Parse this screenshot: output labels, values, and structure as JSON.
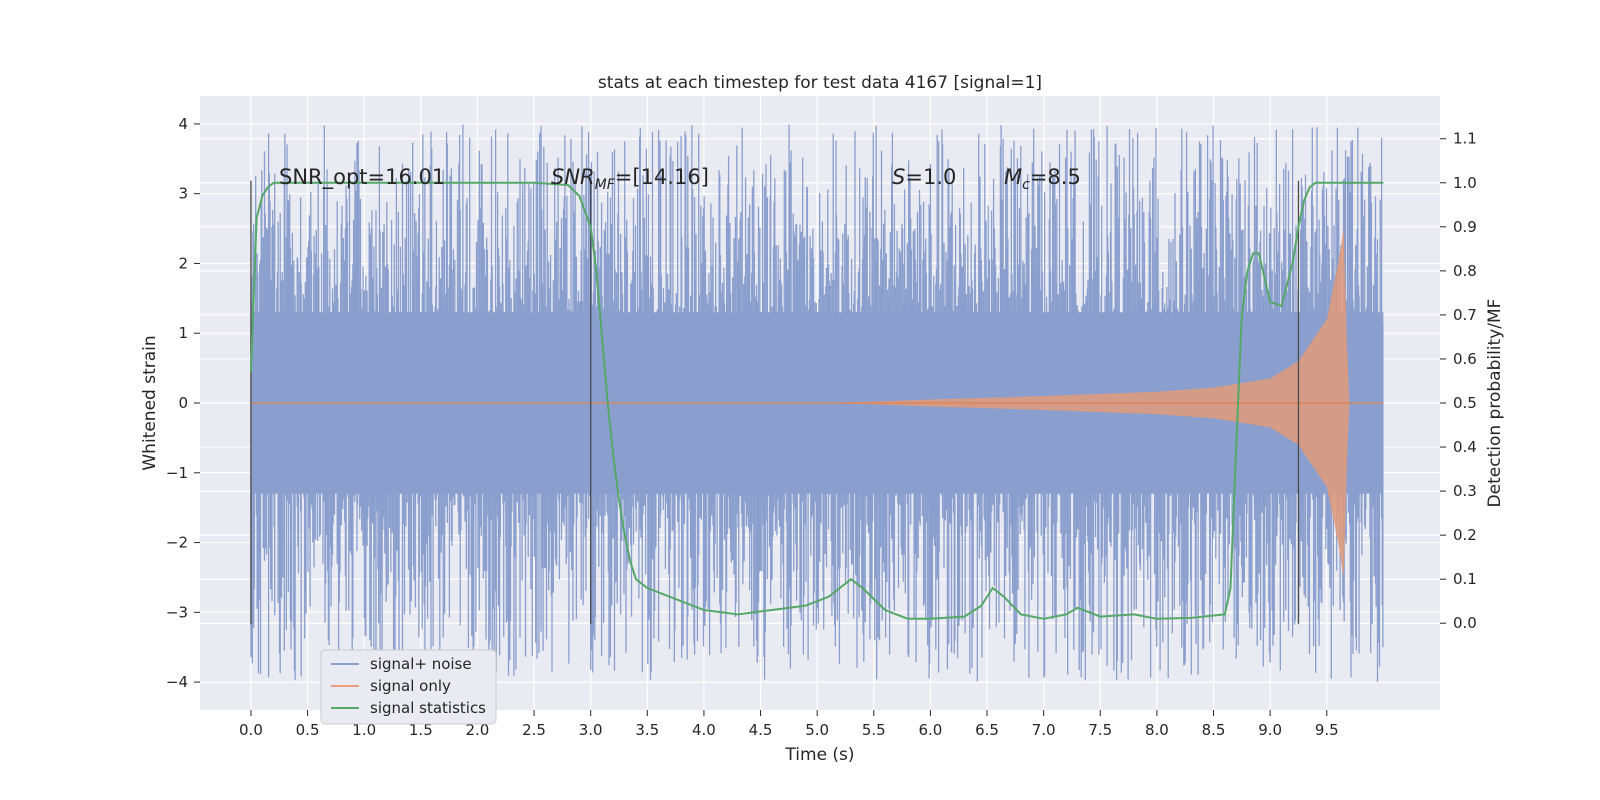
{
  "chart_data": {
    "type": "line",
    "title": "stats at each timestep for test data 4167 [signal=1]",
    "xlabel": "Time (s)",
    "ylabel_left": "Whitened strain",
    "ylabel_right": "Detection probability/MF",
    "xlim": [
      -0.45,
      10.5
    ],
    "xticks": [
      0.0,
      0.5,
      1.0,
      1.5,
      2.0,
      2.5,
      3.0,
      3.5,
      4.0,
      4.5,
      5.0,
      5.5,
      6.0,
      6.5,
      7.0,
      7.5,
      8.0,
      8.5,
      9.0,
      9.5
    ],
    "xtick_labels": [
      "0.0",
      "0.5",
      "1.0",
      "1.5",
      "2.0",
      "2.5",
      "3.0",
      "3.5",
      "4.0",
      "4.5",
      "5.0",
      "5.5",
      "6.0",
      "6.5",
      "7.0",
      "7.5",
      "8.0",
      "8.5",
      "9.0",
      "9.5"
    ],
    "ylim_left": [
      -4.4,
      4.4
    ],
    "yticks_left": [
      -4,
      -3,
      -2,
      -1,
      0,
      1,
      2,
      3,
      4
    ],
    "ytick_labels_left": [
      "−4",
      "−3",
      "−2",
      "−1",
      "0",
      "1",
      "2",
      "3",
      "4"
    ],
    "ylim_right": [
      -0.197,
      1.197
    ],
    "yticks_right": [
      0.0,
      0.1,
      0.2,
      0.3,
      0.4,
      0.5,
      0.6,
      0.7,
      0.8,
      0.9,
      1.0,
      1.1
    ],
    "ytick_labels_right": [
      "0.0",
      "0.1",
      "0.2",
      "0.3",
      "0.4",
      "0.5",
      "0.6",
      "0.7",
      "0.8",
      "0.9",
      "1.0",
      "1.1"
    ],
    "grid": true,
    "legend_position": "lower-left",
    "legend": [
      "signal+ noise",
      "signal only",
      "signal statistics"
    ],
    "colors": {
      "noise": "#8a9fcd",
      "signal": "#dd8452",
      "signal_fill": "#e09a7a",
      "stats": "#55a868",
      "vline": "#4a4a4a",
      "plot_bg": "#eaeaf2",
      "grid": "#ffffff"
    },
    "annotations": {
      "snr_opt": "SNR_opt=16.01",
      "snr_mf_label": "SNR",
      "snr_mf_sub": "MF",
      "snr_mf_value": "=[14.16]",
      "s_label": "S",
      "s_value": "=1.0",
      "mc_label": "M",
      "mc_sub": "c",
      "mc_value": "=8.5"
    },
    "vertical_lines_x": [
      0.0,
      3.0,
      9.25
    ],
    "signal_plus_noise": {
      "t_start": 0.0,
      "t_end": 10.0,
      "core_band": [
        -1.3,
        1.3
      ],
      "spike_range": [
        -4.0,
        4.0
      ],
      "description_note": ""
    },
    "signal_only": {
      "t_start": 0.0,
      "t_end": 10.0,
      "amplitude_envelope": [
        [
          0.0,
          0.0
        ],
        [
          5.0,
          0.0
        ],
        [
          5.5,
          0.02
        ],
        [
          6.0,
          0.05
        ],
        [
          7.0,
          0.1
        ],
        [
          8.0,
          0.16
        ],
        [
          8.5,
          0.22
        ],
        [
          9.0,
          0.35
        ],
        [
          9.25,
          0.6
        ],
        [
          9.5,
          1.2
        ],
        [
          9.6,
          2.0
        ],
        [
          9.65,
          2.5
        ],
        [
          9.68,
          0.8
        ],
        [
          9.7,
          0.0
        ],
        [
          10.0,
          0.0
        ]
      ]
    },
    "signal_statistics": {
      "x": [
        0.0,
        0.05,
        0.1,
        0.15,
        0.2,
        0.3,
        0.5,
        1.0,
        1.5,
        2.0,
        2.5,
        2.8,
        2.9,
        3.0,
        3.05,
        3.1,
        3.15,
        3.2,
        3.25,
        3.3,
        3.35,
        3.4,
        3.5,
        3.7,
        4.0,
        4.3,
        4.6,
        4.9,
        5.1,
        5.2,
        5.3,
        5.4,
        5.6,
        5.8,
        6.0,
        6.3,
        6.45,
        6.55,
        6.65,
        6.8,
        7.0,
        7.2,
        7.3,
        7.5,
        7.8,
        8.0,
        8.3,
        8.6,
        8.65,
        8.7,
        8.75,
        8.8,
        8.85,
        8.9,
        9.0,
        9.1,
        9.2,
        9.25,
        9.3,
        9.35,
        9.4,
        9.5,
        10.0
      ],
      "y": [
        0.57,
        0.92,
        0.97,
        0.99,
        1.0,
        1.0,
        1.0,
        1.0,
        1.0,
        1.0,
        1.0,
        0.995,
        0.97,
        0.9,
        0.8,
        0.65,
        0.5,
        0.38,
        0.28,
        0.2,
        0.14,
        0.1,
        0.08,
        0.06,
        0.03,
        0.02,
        0.03,
        0.04,
        0.06,
        0.08,
        0.1,
        0.08,
        0.03,
        0.01,
        0.01,
        0.015,
        0.04,
        0.08,
        0.06,
        0.02,
        0.01,
        0.02,
        0.035,
        0.015,
        0.02,
        0.01,
        0.012,
        0.02,
        0.08,
        0.4,
        0.7,
        0.8,
        0.84,
        0.84,
        0.73,
        0.72,
        0.82,
        0.9,
        0.96,
        0.99,
        1.0,
        1.0,
        1.0
      ]
    }
  }
}
